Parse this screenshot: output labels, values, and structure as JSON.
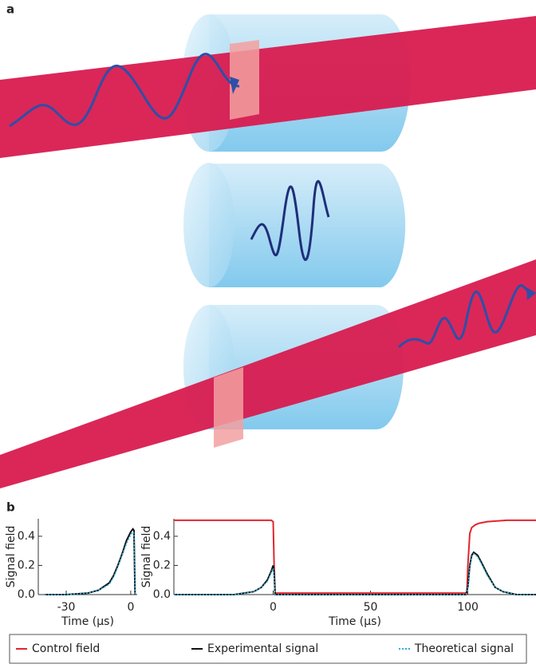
{
  "panel_labels": [
    "a",
    "b"
  ],
  "chart_data": [
    {
      "type": "line",
      "ylabel": "Signal field",
      "xlabel": "Time (μs)",
      "xlim": [
        -43,
        3
      ],
      "ylim": [
        0,
        0.52
      ],
      "xticks": [
        -30,
        0
      ],
      "yticks": [
        {
          "value": 0,
          "label": "0.0"
        },
        0.2,
        0.4
      ],
      "series": [
        {
          "color": "#111111",
          "style": "solid",
          "x": [
            -40,
            -30,
            -20,
            -15,
            -10,
            -8,
            -6,
            -4,
            -2,
            0,
            1,
            1.5,
            2
          ],
          "values": [
            0,
            0,
            0.01,
            0.03,
            0.08,
            0.13,
            0.2,
            0.28,
            0.37,
            0.43,
            0.45,
            0.44,
            0
          ]
        },
        {
          "color": "#2ab0d8",
          "style": "dotted",
          "x": [
            -40,
            -30,
            -20,
            -15,
            -10,
            -8,
            -6,
            -4,
            -2,
            0,
            1,
            1.5,
            2
          ],
          "values": [
            0,
            0,
            0.01,
            0.03,
            0.07,
            0.12,
            0.19,
            0.27,
            0.35,
            0.41,
            0.43,
            0.42,
            0
          ]
        }
      ]
    },
    {
      "type": "line",
      "ylabel": "Signal field",
      "xlabel": "Time (μs)",
      "xlim": [
        -51,
        135
      ],
      "ylim": [
        0,
        0.52
      ],
      "xticks": [
        0,
        50,
        100
      ],
      "yticks": [
        {
          "value": 0,
          "label": "0.0"
        },
        0.2,
        0.4
      ],
      "series": [
        {
          "name": "Control field",
          "color": "#e0262f",
          "style": "solid",
          "x": [
            -51,
            -1,
            0,
            0.5,
            1,
            20,
            50,
            80,
            99.5,
            100,
            101,
            102,
            104,
            106,
            110,
            120,
            135
          ],
          "values": [
            0.51,
            0.51,
            0.5,
            0.2,
            0.01,
            0.01,
            0.01,
            0.01,
            0.01,
            0.2,
            0.42,
            0.46,
            0.48,
            0.49,
            0.5,
            0.51,
            0.51
          ]
        },
        {
          "name": "Experimental signal",
          "color": "#111111",
          "style": "solid",
          "x": [
            -51,
            -20,
            -15,
            -10,
            -6,
            -3,
            -1,
            0,
            0.5,
            1,
            20,
            50,
            99,
            100,
            101,
            102,
            103,
            105,
            107,
            110,
            114,
            118,
            125,
            135
          ],
          "values": [
            0,
            0,
            0.01,
            0.02,
            0.05,
            0.1,
            0.16,
            0.2,
            0.15,
            0,
            0,
            0,
            0,
            0.05,
            0.2,
            0.27,
            0.29,
            0.27,
            0.22,
            0.14,
            0.05,
            0.02,
            0,
            0
          ]
        },
        {
          "name": "Theoretical signal",
          "color": "#2ab0d8",
          "style": "dotted",
          "x": [
            -51,
            -20,
            -15,
            -10,
            -6,
            -3,
            -1,
            0,
            0.5,
            1,
            20,
            50,
            99,
            100,
            101,
            102,
            103,
            105,
            107,
            110,
            114,
            118,
            125,
            135
          ],
          "values": [
            0,
            0,
            0.01,
            0.02,
            0.05,
            0.09,
            0.15,
            0.18,
            0.12,
            0,
            0,
            0,
            0,
            0.04,
            0.18,
            0.26,
            0.28,
            0.26,
            0.21,
            0.13,
            0.05,
            0.02,
            0,
            0
          ]
        }
      ]
    }
  ]
}
